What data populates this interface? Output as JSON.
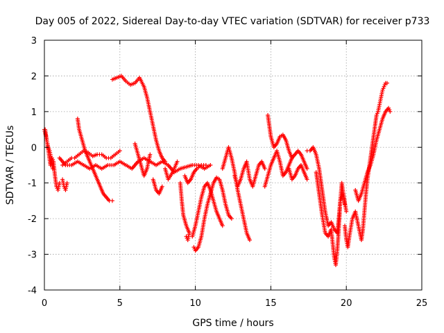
{
  "chart_data": {
    "type": "scatter",
    "title": "Day 005 of 2022, Sidereal Day-to-day VTEC variation (SDTVAR) for receiver p733",
    "xlabel": "GPS time / hours",
    "ylabel": "SDTVAR / TECUs",
    "xlim": [
      0,
      25
    ],
    "ylim": [
      -4,
      3
    ],
    "xticks": [
      0,
      5,
      10,
      15,
      20,
      25
    ],
    "yticks": [
      -4,
      -3,
      -2,
      -1,
      0,
      1,
      2,
      3
    ],
    "grid": true,
    "marker": "+",
    "color": "#ff0000",
    "series": [
      {
        "name": "s1",
        "points": [
          [
            0.0,
            0.5
          ],
          [
            0.1,
            0.3
          ],
          [
            0.2,
            0.1
          ],
          [
            0.3,
            -0.2
          ],
          [
            0.4,
            -0.5
          ],
          [
            0.5,
            -0.3
          ],
          [
            0.6,
            -0.4
          ],
          [
            0.7,
            -0.8
          ],
          [
            0.8,
            -1.1
          ],
          [
            0.9,
            -1.2
          ],
          [
            1.0,
            -1.0
          ]
        ]
      },
      {
        "name": "s2",
        "points": [
          [
            0.05,
            0.5
          ],
          [
            0.15,
            0.2
          ],
          [
            0.25,
            0.0
          ],
          [
            0.35,
            -0.1
          ],
          [
            0.45,
            -0.3
          ],
          [
            0.55,
            -0.6
          ]
        ]
      },
      {
        "name": "s3",
        "points": [
          [
            1.2,
            -0.9
          ],
          [
            1.3,
            -1.1
          ],
          [
            1.4,
            -1.2
          ],
          [
            1.5,
            -1.0
          ]
        ]
      },
      {
        "name": "s4",
        "points": [
          [
            1.2,
            -0.5
          ],
          [
            1.5,
            -0.4
          ],
          [
            1.8,
            -0.3
          ],
          [
            2.0,
            -0.3
          ],
          [
            2.3,
            -0.2
          ],
          [
            2.6,
            -0.1
          ],
          [
            2.9,
            -0.15
          ],
          [
            3.2,
            -0.25
          ],
          [
            3.5,
            -0.2
          ],
          [
            3.8,
            -0.2
          ],
          [
            4.1,
            -0.3
          ],
          [
            4.4,
            -0.3
          ],
          [
            4.7,
            -0.2
          ],
          [
            5.0,
            -0.1
          ]
        ]
      },
      {
        "name": "s5",
        "points": [
          [
            1.0,
            -0.3
          ],
          [
            1.4,
            -0.5
          ],
          [
            1.8,
            -0.5
          ],
          [
            2.2,
            -0.4
          ],
          [
            2.6,
            -0.5
          ],
          [
            3.0,
            -0.6
          ],
          [
            3.4,
            -0.5
          ],
          [
            3.8,
            -0.6
          ],
          [
            4.2,
            -0.5
          ],
          [
            4.6,
            -0.5
          ],
          [
            5.0,
            -0.4
          ],
          [
            5.4,
            -0.5
          ],
          [
            5.8,
            -0.6
          ],
          [
            6.2,
            -0.4
          ],
          [
            6.6,
            -0.3
          ],
          [
            7.0,
            -0.4
          ],
          [
            7.4,
            -0.5
          ],
          [
            7.8,
            -0.4
          ],
          [
            8.2,
            -0.5
          ],
          [
            8.6,
            -0.7
          ],
          [
            9.0,
            -0.6
          ],
          [
            9.4,
            -0.55
          ],
          [
            9.8,
            -0.5
          ],
          [
            10.2,
            -0.5
          ],
          [
            10.6,
            -0.6
          ],
          [
            11.0,
            -0.5
          ]
        ]
      },
      {
        "name": "s6",
        "points": [
          [
            2.2,
            0.8
          ],
          [
            2.3,
            0.5
          ],
          [
            2.5,
            0.2
          ],
          [
            2.7,
            -0.1
          ],
          [
            2.9,
            -0.3
          ],
          [
            3.1,
            -0.5
          ],
          [
            3.3,
            -0.7
          ],
          [
            3.5,
            -0.9
          ],
          [
            3.7,
            -1.1
          ],
          [
            3.9,
            -1.3
          ],
          [
            4.1,
            -1.4
          ],
          [
            4.3,
            -1.5
          ],
          [
            4.5,
            -1.5
          ]
        ]
      },
      {
        "name": "s7",
        "points": [
          [
            4.5,
            1.9
          ],
          [
            4.8,
            1.95
          ],
          [
            5.1,
            2.0
          ],
          [
            5.4,
            1.85
          ],
          [
            5.7,
            1.75
          ],
          [
            6.0,
            1.8
          ],
          [
            6.3,
            1.95
          ],
          [
            6.6,
            1.7
          ],
          [
            6.8,
            1.4
          ],
          [
            7.0,
            1.0
          ],
          [
            7.2,
            0.6
          ],
          [
            7.4,
            0.2
          ],
          [
            7.6,
            -0.1
          ],
          [
            7.8,
            -0.3
          ],
          [
            8.0,
            -0.4
          ]
        ]
      },
      {
        "name": "s8",
        "points": [
          [
            6.0,
            0.1
          ],
          [
            6.2,
            -0.2
          ],
          [
            6.4,
            -0.5
          ],
          [
            6.6,
            -0.8
          ],
          [
            6.8,
            -0.6
          ],
          [
            7.0,
            -0.2
          ]
        ]
      },
      {
        "name": "s9",
        "points": [
          [
            7.2,
            -0.9
          ],
          [
            7.4,
            -1.2
          ],
          [
            7.6,
            -1.3
          ],
          [
            7.8,
            -1.1
          ]
        ]
      },
      {
        "name": "s10",
        "points": [
          [
            8.0,
            -0.6
          ],
          [
            8.2,
            -0.9
          ],
          [
            8.5,
            -0.7
          ],
          [
            8.8,
            -0.4
          ]
        ]
      },
      {
        "name": "s11",
        "points": [
          [
            9.0,
            -1.0
          ],
          [
            9.1,
            -1.5
          ],
          [
            9.2,
            -1.9
          ],
          [
            9.4,
            -2.2
          ],
          [
            9.6,
            -2.4
          ],
          [
            9.5,
            -2.6
          ],
          [
            9.4,
            -2.5
          ]
        ]
      },
      {
        "name": "s12",
        "points": [
          [
            9.9,
            -2.8
          ],
          [
            10.0,
            -2.9
          ],
          [
            10.2,
            -2.8
          ],
          [
            10.4,
            -2.5
          ],
          [
            10.6,
            -2.0
          ],
          [
            10.8,
            -1.6
          ],
          [
            11.0,
            -1.3
          ],
          [
            11.2,
            -1.0
          ],
          [
            11.4,
            -0.85
          ],
          [
            11.6,
            -0.9
          ],
          [
            11.8,
            -1.2
          ],
          [
            12.0,
            -1.6
          ],
          [
            12.2,
            -1.9
          ],
          [
            12.4,
            -2.0
          ]
        ]
      },
      {
        "name": "s13",
        "points": [
          [
            9.3,
            -0.8
          ],
          [
            9.5,
            -1.0
          ],
          [
            9.7,
            -0.9
          ],
          [
            9.9,
            -0.7
          ],
          [
            10.1,
            -0.6
          ],
          [
            10.4,
            -0.5
          ],
          [
            10.7,
            -0.5
          ]
        ]
      },
      {
        "name": "s14",
        "points": [
          [
            9.8,
            -2.5
          ],
          [
            10.0,
            -2.2
          ],
          [
            10.2,
            -1.8
          ],
          [
            10.4,
            -1.4
          ],
          [
            10.6,
            -1.1
          ],
          [
            10.8,
            -1.0
          ],
          [
            11.0,
            -1.2
          ],
          [
            11.2,
            -1.5
          ],
          [
            11.4,
            -1.8
          ],
          [
            11.6,
            -2.0
          ],
          [
            11.8,
            -2.2
          ]
        ]
      },
      {
        "name": "s15",
        "points": [
          [
            11.8,
            -0.6
          ],
          [
            12.0,
            -0.3
          ],
          [
            12.2,
            0.0
          ],
          [
            12.4,
            -0.3
          ],
          [
            12.6,
            -0.7
          ],
          [
            12.8,
            -1.2
          ],
          [
            13.0,
            -1.6
          ],
          [
            13.2,
            -2.0
          ],
          [
            13.4,
            -2.4
          ],
          [
            13.6,
            -2.6
          ]
        ]
      },
      {
        "name": "s16",
        "points": [
          [
            12.6,
            -0.8
          ],
          [
            12.8,
            -1.1
          ],
          [
            13.0,
            -0.9
          ],
          [
            13.2,
            -0.6
          ],
          [
            13.4,
            -0.4
          ],
          [
            13.6,
            -0.9
          ],
          [
            13.8,
            -1.1
          ],
          [
            14.0,
            -0.8
          ],
          [
            14.2,
            -0.5
          ],
          [
            14.4,
            -0.4
          ],
          [
            14.6,
            -0.6
          ]
        ]
      },
      {
        "name": "s17",
        "points": [
          [
            14.8,
            0.9
          ],
          [
            14.9,
            0.6
          ],
          [
            15.0,
            0.3
          ],
          [
            15.2,
            0.0
          ],
          [
            15.4,
            0.1
          ],
          [
            15.6,
            0.3
          ],
          [
            15.8,
            0.35
          ],
          [
            16.0,
            0.2
          ],
          [
            16.2,
            -0.1
          ],
          [
            16.4,
            -0.3
          ]
        ]
      },
      {
        "name": "s18",
        "points": [
          [
            14.6,
            -1.1
          ],
          [
            14.8,
            -0.8
          ],
          [
            15.0,
            -0.5
          ],
          [
            15.2,
            -0.3
          ],
          [
            15.4,
            -0.1
          ],
          [
            15.6,
            -0.4
          ],
          [
            15.8,
            -0.8
          ],
          [
            16.0,
            -0.7
          ],
          [
            16.2,
            -0.5
          ],
          [
            16.4,
            -0.3
          ],
          [
            16.6,
            -0.2
          ],
          [
            16.8,
            -0.1
          ],
          [
            17.0,
            -0.2
          ],
          [
            17.2,
            -0.4
          ],
          [
            17.4,
            -0.6
          ]
        ]
      },
      {
        "name": "s19",
        "points": [
          [
            16.2,
            -0.6
          ],
          [
            16.4,
            -0.9
          ],
          [
            16.6,
            -0.8
          ],
          [
            16.8,
            -0.6
          ],
          [
            17.0,
            -0.5
          ],
          [
            17.2,
            -0.7
          ],
          [
            17.4,
            -0.9
          ]
        ]
      },
      {
        "name": "s20",
        "points": [
          [
            17.4,
            -0.1
          ],
          [
            17.6,
            -0.1
          ],
          [
            17.8,
            0.0
          ],
          [
            18.0,
            -0.2
          ],
          [
            18.2,
            -0.6
          ],
          [
            18.4,
            -1.2
          ],
          [
            18.6,
            -1.8
          ],
          [
            18.8,
            -2.2
          ],
          [
            19.0,
            -2.1
          ],
          [
            19.2,
            -2.3
          ],
          [
            19.4,
            -2.4
          ],
          [
            19.5,
            -2.0
          ],
          [
            19.6,
            -1.5
          ],
          [
            19.8,
            -1.3
          ],
          [
            19.9,
            -1.6
          ]
        ]
      },
      {
        "name": "s21",
        "points": [
          [
            18.0,
            -0.7
          ],
          [
            18.2,
            -1.3
          ],
          [
            18.4,
            -1.9
          ],
          [
            18.6,
            -2.4
          ],
          [
            18.8,
            -2.5
          ],
          [
            19.0,
            -2.3
          ],
          [
            19.2,
            -3.1
          ],
          [
            19.3,
            -3.3
          ],
          [
            19.4,
            -2.9
          ],
          [
            19.5,
            -2.3
          ],
          [
            19.6,
            -1.5
          ],
          [
            19.7,
            -1.0
          ],
          [
            19.8,
            -1.3
          ],
          [
            20.0,
            -1.8
          ]
        ]
      },
      {
        "name": "s22",
        "points": [
          [
            19.9,
            -2.2
          ],
          [
            20.0,
            -2.6
          ],
          [
            20.1,
            -2.8
          ],
          [
            20.2,
            -2.5
          ],
          [
            20.4,
            -2.0
          ],
          [
            20.6,
            -1.8
          ],
          [
            20.8,
            -2.2
          ],
          [
            21.0,
            -2.6
          ],
          [
            21.1,
            -2.3
          ],
          [
            21.2,
            -1.8
          ],
          [
            21.3,
            -1.3
          ],
          [
            21.4,
            -0.9
          ],
          [
            21.5,
            -0.6
          ],
          [
            21.6,
            -0.3
          ],
          [
            21.7,
            0.0
          ],
          [
            21.8,
            0.3
          ],
          [
            21.9,
            0.6
          ],
          [
            22.0,
            0.9
          ],
          [
            22.1,
            1.0
          ],
          [
            22.2,
            1.2
          ],
          [
            22.3,
            1.4
          ],
          [
            22.4,
            1.6
          ],
          [
            22.5,
            1.7
          ],
          [
            22.6,
            1.8
          ],
          [
            22.7,
            1.8
          ]
        ]
      },
      {
        "name": "s23",
        "points": [
          [
            20.6,
            -1.2
          ],
          [
            20.8,
            -1.5
          ],
          [
            21.0,
            -1.3
          ],
          [
            21.2,
            -1.0
          ],
          [
            21.4,
            -0.7
          ],
          [
            21.6,
            -0.5
          ],
          [
            21.8,
            -0.2
          ],
          [
            22.0,
            0.2
          ],
          [
            22.2,
            0.5
          ],
          [
            22.4,
            0.8
          ],
          [
            22.6,
            1.0
          ],
          [
            22.8,
            1.1
          ],
          [
            22.9,
            1.0
          ]
        ]
      }
    ]
  }
}
